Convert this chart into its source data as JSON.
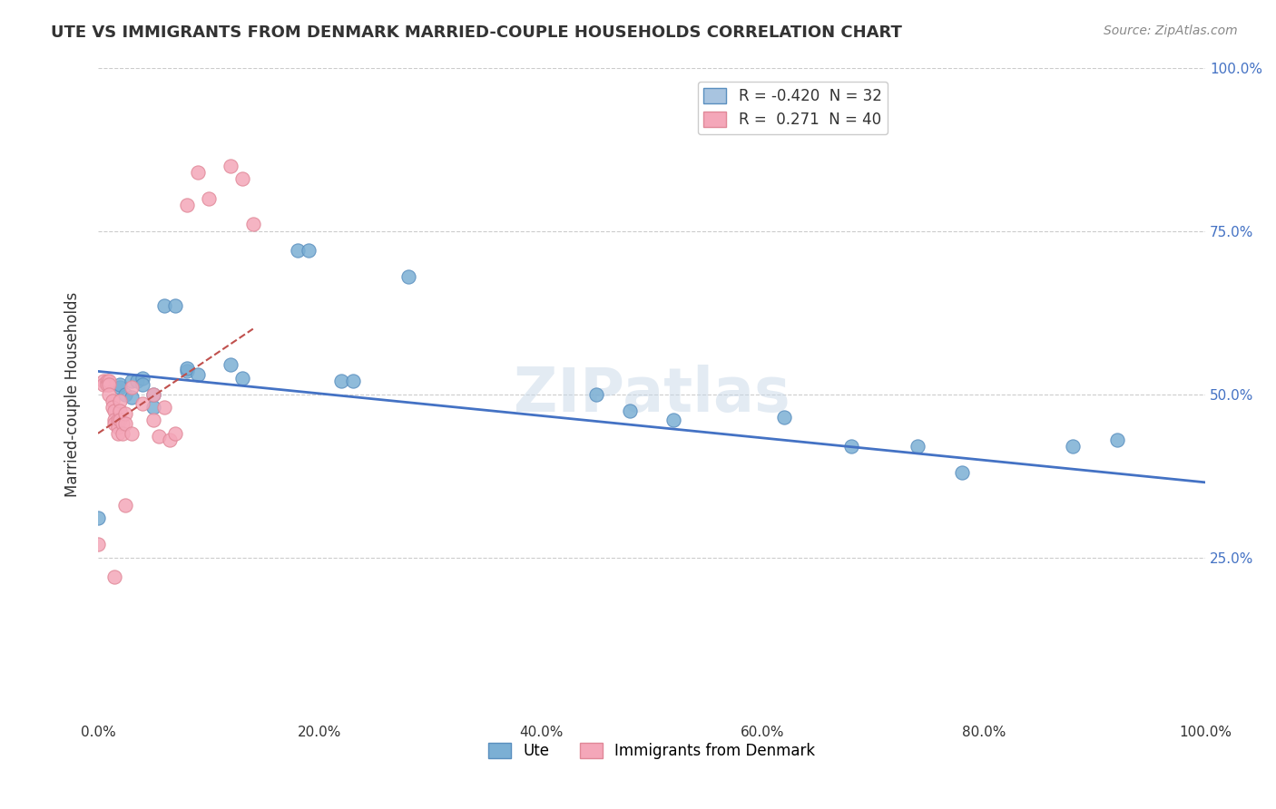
{
  "title": "UTE VS IMMIGRANTS FROM DENMARK MARRIED-COUPLE HOUSEHOLDS CORRELATION CHART",
  "source": "Source: ZipAtlas.com",
  "ylabel": "Married-couple Households",
  "xlabel_ticks": [
    "0.0%",
    "20.0%",
    "40.0%",
    "60.0%",
    "80.0%",
    "100.0%"
  ],
  "ylabel_ticks": [
    "25.0%",
    "50.0%",
    "75.0%",
    "100.0%"
  ],
  "xlim": [
    0.0,
    1.0
  ],
  "ylim": [
    0.0,
    1.0
  ],
  "watermark": "ZIPatlas",
  "legend_entries": [
    {
      "label": "R = -0.420  N = 32",
      "color": "#a8c4e0"
    },
    {
      "label": "R =  0.271  N = 40",
      "color": "#f4a7b9"
    }
  ],
  "ute_scatter_x": [
    0.0,
    0.02,
    0.02,
    0.025,
    0.03,
    0.03,
    0.035,
    0.04,
    0.04,
    0.05,
    0.05,
    0.06,
    0.07,
    0.08,
    0.08,
    0.09,
    0.12,
    0.13,
    0.18,
    0.19,
    0.22,
    0.23,
    0.28,
    0.45,
    0.48,
    0.52,
    0.62,
    0.68,
    0.74,
    0.78,
    0.88,
    0.92
  ],
  "ute_scatter_y": [
    0.31,
    0.51,
    0.515,
    0.5,
    0.52,
    0.495,
    0.52,
    0.525,
    0.515,
    0.48,
    0.5,
    0.635,
    0.635,
    0.535,
    0.54,
    0.53,
    0.545,
    0.525,
    0.72,
    0.72,
    0.52,
    0.52,
    0.68,
    0.5,
    0.475,
    0.46,
    0.465,
    0.42,
    0.42,
    0.38,
    0.42,
    0.43
  ],
  "denmark_scatter_x": [
    0.0,
    0.005,
    0.005,
    0.008,
    0.008,
    0.01,
    0.01,
    0.01,
    0.013,
    0.013,
    0.015,
    0.015,
    0.015,
    0.018,
    0.018,
    0.018,
    0.02,
    0.02,
    0.02,
    0.022,
    0.022,
    0.025,
    0.025,
    0.03,
    0.03,
    0.04,
    0.05,
    0.05,
    0.055,
    0.06,
    0.065,
    0.07,
    0.08,
    0.09,
    0.1,
    0.12,
    0.13,
    0.14,
    0.015,
    0.025
  ],
  "denmark_scatter_y": [
    0.27,
    0.52,
    0.515,
    0.52,
    0.515,
    0.52,
    0.515,
    0.5,
    0.49,
    0.48,
    0.475,
    0.46,
    0.455,
    0.46,
    0.45,
    0.44,
    0.49,
    0.475,
    0.46,
    0.455,
    0.44,
    0.47,
    0.455,
    0.51,
    0.44,
    0.485,
    0.5,
    0.46,
    0.435,
    0.48,
    0.43,
    0.44,
    0.79,
    0.84,
    0.8,
    0.85,
    0.83,
    0.76,
    0.22,
    0.33
  ],
  "ute_line_x": [
    0.0,
    1.0
  ],
  "ute_line_y": [
    0.535,
    0.365
  ],
  "denmark_line_x": [
    0.0,
    0.14
  ],
  "denmark_line_y": [
    0.44,
    0.6
  ],
  "scatter_size": 120,
  "ute_color": "#7bafd4",
  "denmark_color": "#f4a7b9",
  "ute_edge_color": "#5a8fbf",
  "denmark_edge_color": "#e08898",
  "trendline_ute_color": "#4472c4",
  "trendline_denmark_color": "#c0504d",
  "background_color": "#ffffff",
  "grid_color": "#cccccc"
}
